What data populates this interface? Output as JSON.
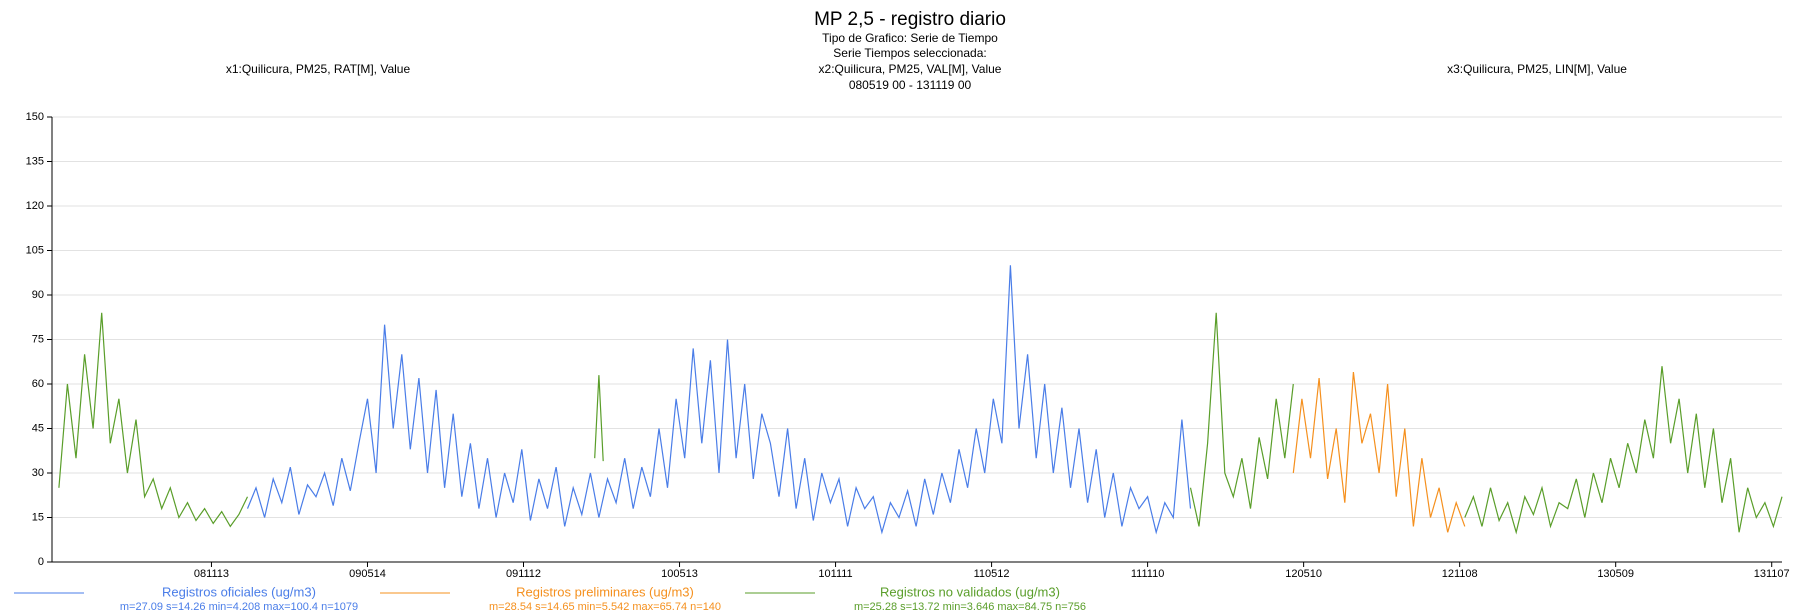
{
  "chart_data": {
    "type": "line",
    "title": "MP 2,5 - registro diario",
    "subtitle_lines": [
      "Tipo de Grafico: Serie de Tiempo",
      "Serie Tiempos seleccionada:",
      "x2:Quilicura, PM25, VAL[M], Value",
      "080519 00 - 131119 00"
    ],
    "left_label": "x1:Quilicura, PM25, RAT[M], Value",
    "right_label": "x3:Quilicura, PM25, LIN[M], Value",
    "xlim": [
      -8,
      2010
    ],
    "xticks": [
      {
        "value": 178,
        "label": "081113"
      },
      {
        "value": 360,
        "label": "090514"
      },
      {
        "value": 542,
        "label": "091112"
      },
      {
        "value": 724,
        "label": "100513"
      },
      {
        "value": 906,
        "label": "101111"
      },
      {
        "value": 1088,
        "label": "110512"
      },
      {
        "value": 1270,
        "label": "111110"
      },
      {
        "value": 1452,
        "label": "120510"
      },
      {
        "value": 1634,
        "label": "121108"
      },
      {
        "value": 1816,
        "label": "130509"
      },
      {
        "value": 1998,
        "label": "131107"
      }
    ],
    "ylim": [
      0,
      150
    ],
    "yticks": [
      0,
      15,
      30,
      45,
      60,
      75,
      90,
      105,
      120,
      135,
      150
    ],
    "grid": true,
    "series": [
      {
        "name": "Registros oficiales (ug/m3)",
        "color": "#4a7de8",
        "stats": "m=27.09 s=14.26 min=4.208 max=100.4 n=1079",
        "x": [
          220,
          230,
          240,
          250,
          260,
          270,
          280,
          290,
          300,
          310,
          320,
          330,
          340,
          350,
          360,
          370,
          380,
          390,
          400,
          410,
          420,
          430,
          440,
          450,
          460,
          470,
          480,
          490,
          500,
          510,
          520,
          530,
          540,
          550,
          560,
          570,
          580,
          590,
          600,
          610,
          620,
          630,
          640,
          650,
          660,
          670,
          680,
          690,
          700,
          710,
          720,
          730,
          740,
          750,
          760,
          770,
          780,
          790,
          800,
          810,
          820,
          830,
          840,
          850,
          860,
          870,
          880,
          890,
          900,
          910,
          920,
          930,
          940,
          950,
          960,
          970,
          980,
          990,
          1000,
          1010,
          1020,
          1030,
          1040,
          1050,
          1060,
          1070,
          1080,
          1090,
          1100,
          1110,
          1120,
          1130,
          1140,
          1150,
          1160,
          1170,
          1180,
          1190,
          1200,
          1210,
          1220,
          1230,
          1240,
          1250,
          1260,
          1270,
          1280,
          1290,
          1300,
          1310,
          1320
        ],
        "values": [
          18,
          25,
          15,
          28,
          20,
          32,
          16,
          26,
          22,
          30,
          19,
          35,
          24,
          40,
          55,
          30,
          80,
          45,
          70,
          38,
          62,
          30,
          58,
          25,
          50,
          22,
          40,
          18,
          35,
          15,
          30,
          20,
          38,
          14,
          28,
          18,
          32,
          12,
          25,
          16,
          30,
          15,
          28,
          20,
          35,
          18,
          32,
          22,
          45,
          25,
          55,
          35,
          72,
          40,
          68,
          30,
          75,
          35,
          60,
          28,
          50,
          40,
          22,
          45,
          18,
          35,
          14,
          30,
          20,
          28,
          12,
          25,
          18,
          22,
          10,
          20,
          15,
          24,
          12,
          28,
          16,
          30,
          20,
          38,
          25,
          45,
          30,
          55,
          40,
          100,
          45,
          70,
          35,
          60,
          30,
          52,
          25,
          45,
          20,
          38,
          15,
          30,
          12,
          25,
          18,
          22,
          10,
          20,
          15,
          48,
          18
        ]
      },
      {
        "name": "Registros preliminares (ug/m3)",
        "color": "#f5901e",
        "stats": "m=28.54 s=14.65 min=5.542 max=65.74 n=140",
        "x": [
          1440,
          1450,
          1460,
          1470,
          1480,
          1490,
          1500,
          1510,
          1520,
          1530,
          1540,
          1550,
          1560,
          1570,
          1580,
          1590,
          1600,
          1610,
          1620,
          1630,
          1640
        ],
        "values": [
          30,
          55,
          35,
          62,
          28,
          45,
          20,
          64,
          40,
          50,
          30,
          60,
          22,
          45,
          12,
          35,
          15,
          25,
          10,
          20,
          12
        ]
      },
      {
        "name": "Registros no validados (ug/m3)",
        "color": "#5a9e2a",
        "stats": "m=25.28 s=13.72 min=3.646 max=84.75 n=756",
        "x": [
          0,
          10,
          20,
          30,
          40,
          50,
          60,
          70,
          80,
          90,
          100,
          110,
          120,
          130,
          140,
          150,
          160,
          170,
          180,
          190,
          200,
          210,
          220,
          400,
          625,
          630,
          635,
          900,
          1320,
          1330,
          1340,
          1350,
          1360,
          1370,
          1380,
          1390,
          1400,
          1410,
          1420,
          1430,
          1440,
          1540,
          1640,
          1650,
          1660,
          1670,
          1680,
          1690,
          1700,
          1710,
          1720,
          1730,
          1740,
          1750,
          1760,
          1770,
          1780,
          1790,
          1800,
          1810,
          1820,
          1830,
          1840,
          1850,
          1860,
          1870,
          1880,
          1890,
          1900,
          1910,
          1920,
          1930,
          1940,
          1950,
          1960,
          1970,
          1980,
          1990,
          2000,
          2010
        ],
        "values": [
          25,
          60,
          35,
          70,
          45,
          84,
          40,
          55,
          30,
          48,
          22,
          28,
          18,
          25,
          15,
          20,
          14,
          18,
          13,
          17,
          12,
          16,
          22,
          null,
          35,
          63,
          34,
          null,
          25,
          12,
          40,
          84,
          30,
          22,
          35,
          18,
          42,
          28,
          55,
          35,
          60,
          null,
          15,
          22,
          12,
          25,
          14,
          20,
          10,
          22,
          16,
          25,
          12,
          20,
          18,
          28,
          15,
          30,
          20,
          35,
          25,
          40,
          30,
          48,
          35,
          66,
          40,
          55,
          30,
          50,
          25,
          45,
          20,
          35,
          10,
          25,
          15,
          20,
          12,
          22
        ]
      }
    ]
  }
}
